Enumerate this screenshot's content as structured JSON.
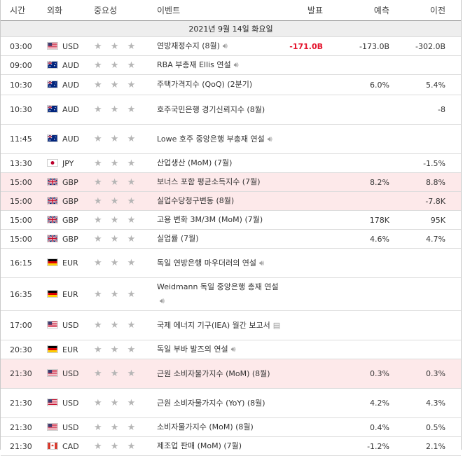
{
  "header": {
    "time": "시간",
    "currency": "외화",
    "importance": "중요성",
    "event": "이벤트",
    "actual": "발표",
    "forecast": "예측",
    "previous": "이전"
  },
  "day_label": "2021년 9월 14일 화요일",
  "rows": [
    {
      "time": "03:00",
      "flag": "us",
      "currency": "USD",
      "stars": "★ ★ ★",
      "event": "연방재정수지 (8월)",
      "icon": "speaker-icon",
      "actual": "-171.0B",
      "forecast": "-173.0B",
      "previous": "-302.0B",
      "highlight": false
    },
    {
      "time": "09:00",
      "flag": "au",
      "currency": "AUD",
      "stars": "★ ★ ★",
      "event": "RBA 부총재 Ellis 연설",
      "icon": "speaker-icon",
      "actual": "",
      "forecast": "",
      "previous": "",
      "highlight": false
    },
    {
      "time": "10:30",
      "flag": "au",
      "currency": "AUD",
      "stars": "★ ★ ★",
      "event": "주택가격지수 (QoQ) (2분기)",
      "icon": "",
      "actual": "",
      "forecast": "6.0%",
      "previous": "5.4%",
      "highlight": false
    },
    {
      "time": "10:30",
      "flag": "au",
      "currency": "AUD",
      "stars": "★ ★ ★",
      "event": "호주국민은행 경기신뢰지수 (8월)",
      "icon": "",
      "actual": "",
      "forecast": "",
      "previous": "-8",
      "highlight": false
    },
    {
      "time": "11:45",
      "flag": "au",
      "currency": "AUD",
      "stars": "★ ★ ★",
      "event": "Lowe 호주 중앙은행 부총재 연설",
      "icon": "speaker-icon",
      "actual": "",
      "forecast": "",
      "previous": "",
      "highlight": false
    },
    {
      "time": "13:30",
      "flag": "jp",
      "currency": "JPY",
      "stars": "★ ★ ★",
      "event": "산업생산 (MoM) (7월)",
      "icon": "",
      "actual": "",
      "forecast": "",
      "previous": "-1.5%",
      "highlight": false
    },
    {
      "time": "15:00",
      "flag": "gb",
      "currency": "GBP",
      "stars": "★ ★ ★",
      "event": "보너스 포함 평균소득지수 (7월)",
      "icon": "",
      "actual": "",
      "forecast": "8.2%",
      "previous": "8.8%",
      "highlight": true
    },
    {
      "time": "15:00",
      "flag": "gb",
      "currency": "GBP",
      "stars": "★ ★ ★",
      "event": "실업수당청구변동 (8월)",
      "icon": "",
      "actual": "",
      "forecast": "",
      "previous": "-7.8K",
      "highlight": true
    },
    {
      "time": "15:00",
      "flag": "gb",
      "currency": "GBP",
      "stars": "★ ★ ★",
      "event": "고용 변화 3M/3M (MoM) (7월)",
      "icon": "",
      "actual": "",
      "forecast": "178K",
      "previous": "95K",
      "highlight": false
    },
    {
      "time": "15:00",
      "flag": "gb",
      "currency": "GBP",
      "stars": "★ ★ ★",
      "event": "실업률 (7월)",
      "icon": "",
      "actual": "",
      "forecast": "4.6%",
      "previous": "4.7%",
      "highlight": false
    },
    {
      "time": "16:15",
      "flag": "de",
      "currency": "EUR",
      "stars": "★ ★ ★",
      "event": "독일 연방은행 마우더러의 연설",
      "icon": "speaker-icon",
      "actual": "",
      "forecast": "",
      "previous": "",
      "highlight": false
    },
    {
      "time": "16:35",
      "flag": "de",
      "currency": "EUR",
      "stars": "★ ★ ★",
      "event": "Weidmann 독일 중앙은행 총재 연설",
      "icon": "speaker-icon",
      "actual": "",
      "forecast": "",
      "previous": "",
      "highlight": false
    },
    {
      "time": "17:00",
      "flag": "us",
      "currency": "USD",
      "stars": "★ ★ ★",
      "event": "국제 에너지 기구(IEA) 월간 보고서",
      "icon": "report-icon",
      "actual": "",
      "forecast": "",
      "previous": "",
      "highlight": false
    },
    {
      "time": "20:30",
      "flag": "de",
      "currency": "EUR",
      "stars": "★ ★ ★",
      "event": "독일 부바 발즈의 연설",
      "icon": "speaker-icon",
      "actual": "",
      "forecast": "",
      "previous": "",
      "highlight": false
    },
    {
      "time": "21:30",
      "flag": "us",
      "currency": "USD",
      "stars": "★ ★ ★",
      "event": "근원 소비자물가지수 (MoM) (8월)",
      "icon": "",
      "actual": "",
      "forecast": "0.3%",
      "previous": "0.3%",
      "highlight": true
    },
    {
      "time": "21:30",
      "flag": "us",
      "currency": "USD",
      "stars": "★ ★ ★",
      "event": "근원 소비자물가지수 (YoY) (8월)",
      "icon": "",
      "actual": "",
      "forecast": "4.2%",
      "previous": "4.3%",
      "highlight": false
    },
    {
      "time": "21:30",
      "flag": "us",
      "currency": "USD",
      "stars": "★ ★ ★",
      "event": "소비자물가지수 (MoM) (8월)",
      "icon": "",
      "actual": "",
      "forecast": "0.4%",
      "previous": "0.5%",
      "highlight": false
    },
    {
      "time": "21:30",
      "flag": "ca",
      "currency": "CAD",
      "stars": "★ ★ ★",
      "event": "제조업 판매 (MoM) (7월)",
      "icon": "",
      "actual": "",
      "forecast": "-1.2%",
      "previous": "2.1%",
      "highlight": false
    }
  ],
  "colors": {
    "highlight_row": "#fde9ea",
    "negative_actual": "#e4142d",
    "star": "#b5b5b5"
  }
}
